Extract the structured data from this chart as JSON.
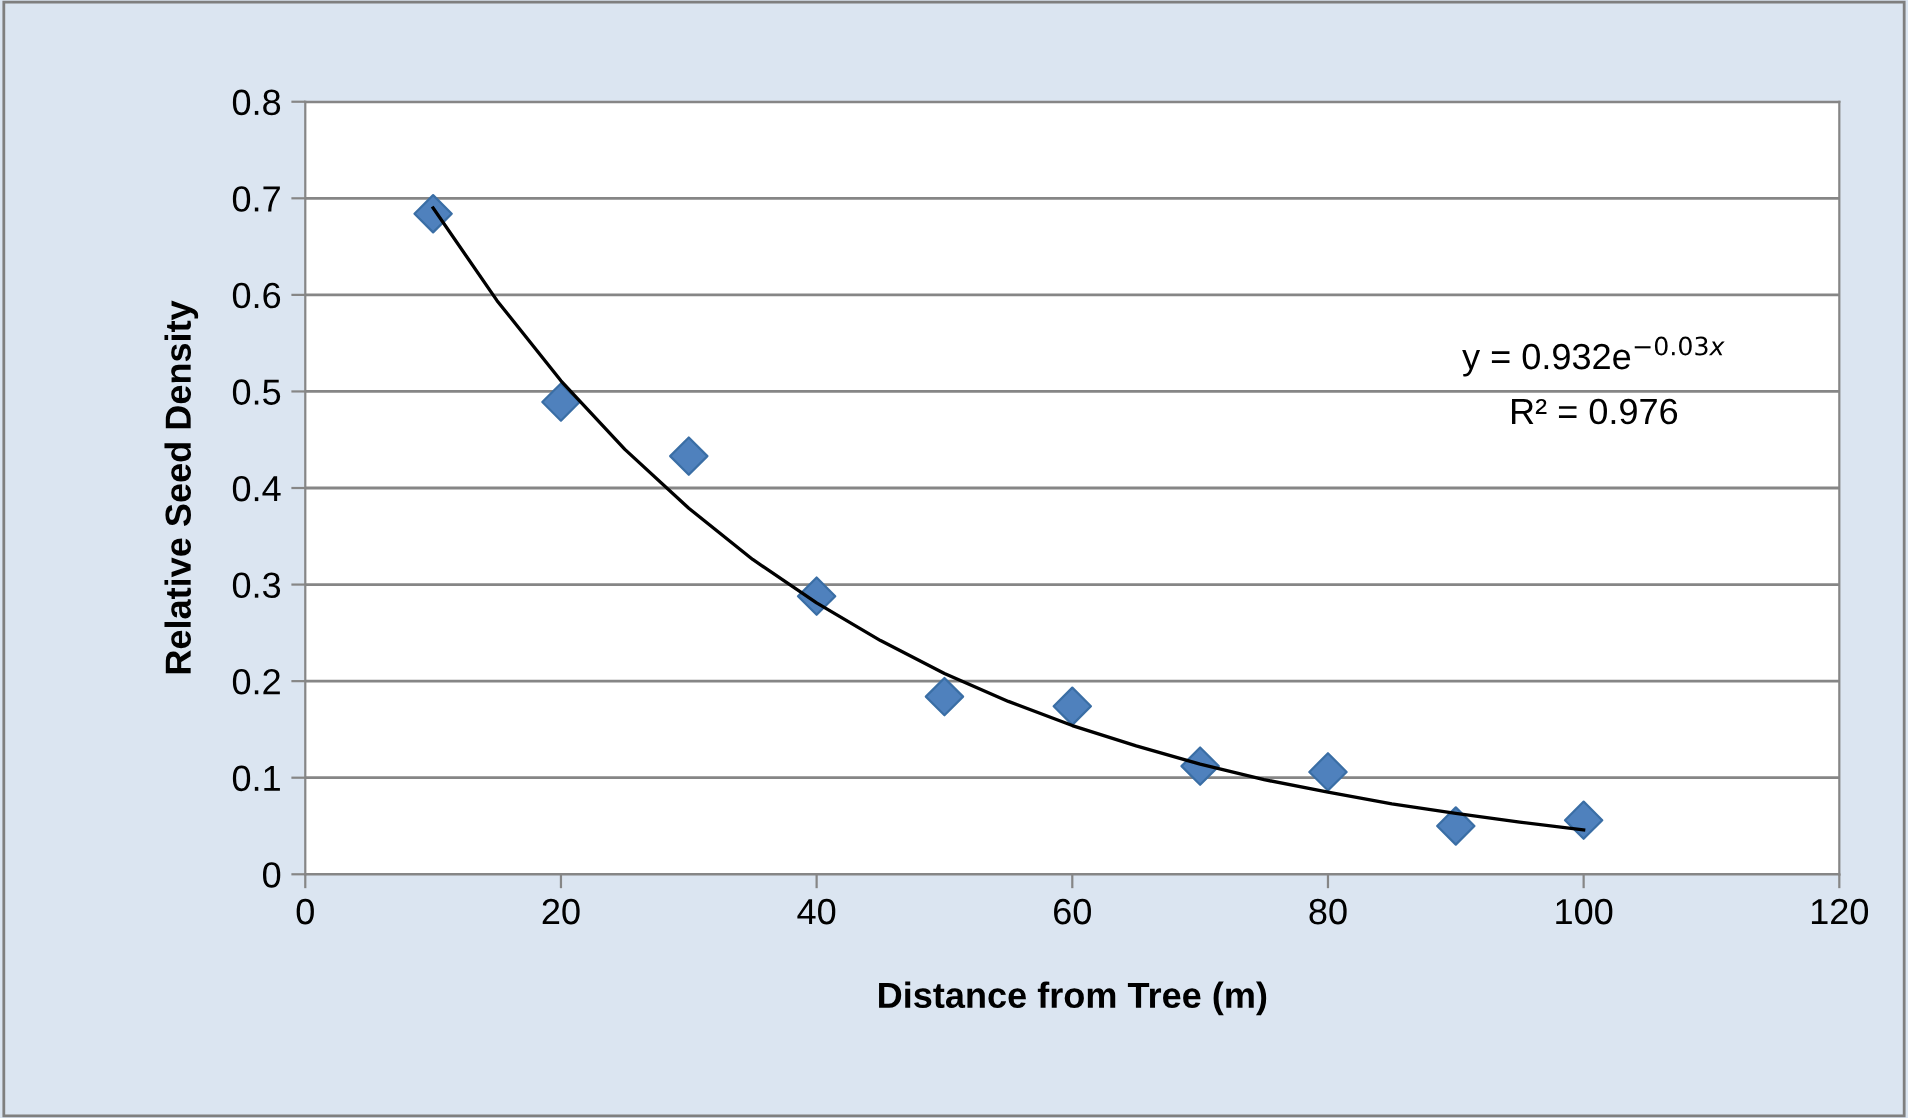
{
  "chart_data": {
    "type": "scatter",
    "xlabel": "Distance from Tree (m)",
    "ylabel": "Relative Seed Density",
    "x": [
      10,
      20,
      30,
      40,
      50,
      60,
      70,
      80,
      90,
      100
    ],
    "series": [
      {
        "color": "#4f81bd",
        "marker": "diamond",
        "values": [
          0.684,
          0.489,
          0.433,
          0.288,
          0.184,
          0.174,
          0.112,
          0.106,
          0.05,
          0.056
        ]
      },
      {
        "type": "line",
        "color": "#000000",
        "marker": "none",
        "line_style": "solid",
        "x": [
          10,
          15,
          20,
          25,
          30,
          35,
          40,
          45,
          50,
          55,
          60,
          65,
          70,
          75,
          80,
          85,
          90,
          95,
          100
        ],
        "values": [
          0.69,
          0.594,
          0.511,
          0.44,
          0.379,
          0.326,
          0.281,
          0.242,
          0.208,
          0.179,
          0.154,
          0.133,
          0.114,
          0.098,
          0.085,
          0.073,
          0.063,
          0.054,
          0.046
        ]
      }
    ],
    "annotations": [
      "y = 0.932e$^{−0.03x}$",
      "R² = 0.976"
    ],
    "xlim": [
      0,
      120
    ],
    "xticks": [
      0,
      20,
      40,
      60,
      80,
      100,
      120
    ],
    "ylim": [
      0,
      0.8
    ],
    "yticks": [
      0,
      0.1,
      0.2,
      0.3,
      0.4,
      0.5,
      0.6,
      0.7,
      0.8
    ],
    "grid": "y"
  }
}
